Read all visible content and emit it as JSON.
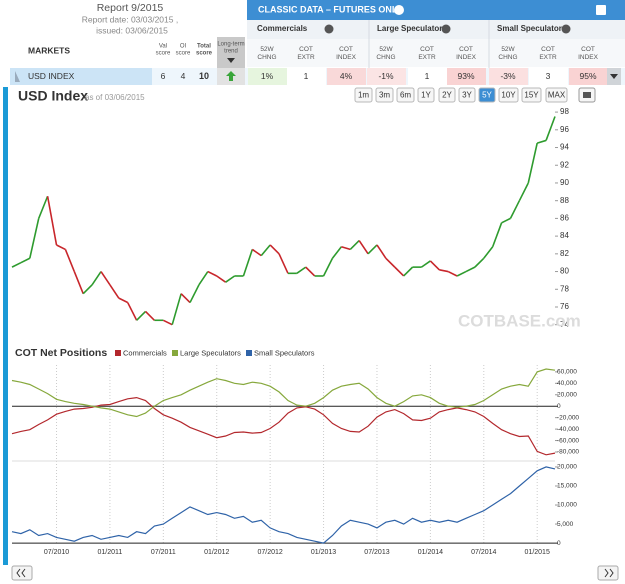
{
  "report": {
    "title": "Report 9/2015",
    "report_date": "Report date: 03/03/2015 ,",
    "issued": "issued: 03/06/2015"
  },
  "table": {
    "heading": "CLASSIC DATA – FUTURES ONLY",
    "markets_label": "MARKETS",
    "score_headers": [
      "Val score",
      "OI score",
      "Total score",
      "Long-term trend"
    ],
    "groups": [
      "Commercials",
      "Large Speculators",
      "Small Speculators"
    ],
    "sub_headers": [
      "52W CHNG",
      "COT EXTR",
      "COT INDEX"
    ],
    "rows": [
      {
        "market": "USD INDEX",
        "val": 6,
        "oi": 4,
        "total": 10,
        "cells": [
          "1%",
          "1",
          "4%",
          "-1%",
          "1",
          "93%",
          "-3%",
          "3",
          "95%"
        ]
      }
    ]
  },
  "header": {
    "title": "USD Index",
    "subtitle": "as of 03/06/2015",
    "range_buttons": [
      "1m",
      "3m",
      "6m",
      "1Y",
      "2Y",
      "3Y",
      "5Y",
      "10Y",
      "15Y",
      "MAX"
    ],
    "active_range": 6
  },
  "watermark": "COTBASE.com",
  "chart_data": [
    {
      "type": "line",
      "up_color": "#2e9b2e",
      "down_color": "#c8262b",
      "values": [
        80.5,
        81,
        81.5,
        86,
        88.5,
        83,
        82.5,
        80,
        77.5,
        78.5,
        80,
        78.5,
        77,
        76.5,
        74.5,
        75.5,
        74.5,
        74.5,
        74,
        77.5,
        76.5,
        78.5,
        80,
        79.5,
        78.8,
        79.5,
        79.5,
        82.5,
        81.8,
        83,
        82,
        79.8,
        79.8,
        80.5,
        79.5,
        79.5,
        81.5,
        82.8,
        82.5,
        83.5,
        82,
        83,
        81.5,
        80.5,
        79.5,
        80.5,
        80.5,
        81.2,
        80.2,
        80,
        79.5,
        80,
        80.5,
        81.5,
        82.8,
        85.5,
        86,
        88,
        90,
        94.5,
        94.8,
        97.5
      ],
      "ylim": [
        72.5,
        98.8
      ],
      "yticks": [
        74,
        76,
        78,
        80,
        82,
        84,
        86,
        88,
        90,
        92,
        94,
        96,
        98
      ]
    },
    {
      "type": "line",
      "title": "COT Net Positions",
      "x": [
        "02/2010",
        "03/2010",
        "04/2010",
        "05/2010",
        "06/2010",
        "07/2010",
        "08/2010",
        "09/2010",
        "10/2010",
        "11/2010",
        "12/2010",
        "01/2011",
        "02/2011",
        "03/2011",
        "04/2011",
        "05/2011",
        "06/2011",
        "07/2011",
        "08/2011",
        "09/2011",
        "10/2011",
        "11/2011",
        "12/2011",
        "01/2012",
        "02/2012",
        "03/2012",
        "04/2012",
        "05/2012",
        "06/2012",
        "07/2012",
        "08/2012",
        "09/2012",
        "10/2012",
        "11/2012",
        "12/2012",
        "01/2013",
        "02/2013",
        "03/2013",
        "04/2013",
        "05/2013",
        "06/2013",
        "07/2013",
        "08/2013",
        "09/2013",
        "10/2013",
        "11/2013",
        "12/2013",
        "01/2014",
        "02/2014",
        "03/2014",
        "04/2014",
        "05/2014",
        "06/2014",
        "07/2014",
        "08/2014",
        "09/2014",
        "10/2014",
        "11/2014",
        "12/2014",
        "01/2015",
        "02/2015",
        "03/2015"
      ],
      "xticks": [
        "07/2010",
        "01/2011",
        "07/2011",
        "01/2012",
        "07/2012",
        "01/2013",
        "07/2013",
        "01/2014",
        "07/2014",
        "01/2015"
      ],
      "series": [
        {
          "name": "Commercials",
          "color": "#b3282d",
          "values": [
            -48000,
            -44000,
            -41000,
            -32000,
            -24000,
            -14000,
            -9000,
            -5000,
            -4000,
            -2000,
            2000,
            3000,
            8000,
            13000,
            15000,
            10000,
            -4000,
            -15000,
            -21000,
            -28000,
            -37000,
            -43000,
            -49000,
            -55000,
            -52000,
            -46000,
            -45000,
            -47000,
            -46000,
            -39000,
            -28000,
            -12000,
            -3000,
            -1000,
            -5000,
            -15000,
            -30000,
            -39000,
            -44000,
            -45000,
            -35000,
            -19000,
            -10000,
            -6000,
            -13000,
            -24000,
            -25000,
            -21000,
            -10000,
            -6000,
            -3000,
            -6000,
            -10000,
            -18000,
            -30000,
            -41000,
            -48000,
            -53000,
            -52000,
            -79000,
            -85000,
            -82000
          ]
        },
        {
          "name": "Large Speculators",
          "color": "#86a83c",
          "values": [
            45000,
            42000,
            38000,
            30000,
            22000,
            12000,
            8000,
            5000,
            3000,
            0,
            -3000,
            -5000,
            -10000,
            -15000,
            -18000,
            -12000,
            0,
            10000,
            15000,
            20000,
            28000,
            35000,
            42000,
            48000,
            45000,
            40000,
            38000,
            42000,
            40000,
            35000,
            25000,
            10000,
            2000,
            0,
            5000,
            15000,
            28000,
            35000,
            38000,
            40000,
            30000,
            15000,
            5000,
            0,
            8000,
            18000,
            20000,
            15000,
            5000,
            0,
            -2000,
            0,
            3000,
            10000,
            20000,
            30000,
            35000,
            38000,
            35000,
            60000,
            65000,
            63000
          ]
        },
        {
          "name": "Small Speculators",
          "color": "#2f63a8",
          "axis": "y2",
          "values": [
            3000,
            2500,
            3500,
            2000,
            2500,
            1500,
            1000,
            500,
            1500,
            2000,
            1000,
            1500,
            2000,
            1500,
            3000,
            2500,
            4500,
            5000,
            6500,
            8000,
            9500,
            8500,
            7500,
            8000,
            7500,
            6500,
            7000,
            5500,
            6000,
            4000,
            3000,
            2500,
            1500,
            1000,
            500,
            0,
            2000,
            4500,
            6000,
            5500,
            5000,
            4000,
            5500,
            6000,
            5000,
            6500,
            5500,
            6000,
            5500,
            6000,
            5500,
            6500,
            7500,
            8500,
            10000,
            11500,
            13000,
            15000,
            17000,
            19000,
            20000,
            19500
          ]
        }
      ],
      "ylim": [
        -94000,
        72000
      ],
      "yticks": [
        {
          "value": -80000,
          "label": "-80,000"
        },
        {
          "value": -60000,
          "label": "-60,000"
        },
        {
          "value": -40000,
          "label": "-40,000"
        },
        {
          "value": -20000,
          "label": "-20,000"
        },
        0,
        {
          "value": 20000,
          "label": "20,000"
        },
        {
          "value": 40000,
          "label": "40,000"
        },
        {
          "value": 60000,
          "label": "60,000"
        }
      ],
      "y2lim": [
        -500,
        21300
      ],
      "y2ticks": [
        0,
        {
          "value": 5000,
          "label": "5,000"
        },
        {
          "value": 10000,
          "label": "10,000"
        },
        {
          "value": 15000,
          "label": "15,000"
        },
        {
          "value": 20000,
          "label": "20,000"
        }
      ]
    }
  ]
}
